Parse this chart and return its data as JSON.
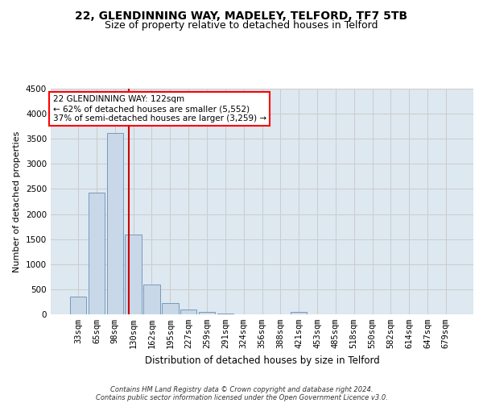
{
  "title1": "22, GLENDINNING WAY, MADELEY, TELFORD, TF7 5TB",
  "title2": "Size of property relative to detached houses in Telford",
  "xlabel": "Distribution of detached houses by size in Telford",
  "ylabel": "Number of detached properties",
  "footnote1": "Contains HM Land Registry data © Crown copyright and database right 2024.",
  "footnote2": "Contains public sector information licensed under the Open Government Licence v3.0.",
  "annotation_line1": "22 GLENDINNING WAY: 122sqm",
  "annotation_line2": "← 62% of detached houses are smaller (5,552)",
  "annotation_line3": "37% of semi-detached houses are larger (3,259) →",
  "categories": [
    "33sqm",
    "65sqm",
    "98sqm",
    "130sqm",
    "162sqm",
    "195sqm",
    "227sqm",
    "259sqm",
    "291sqm",
    "324sqm",
    "356sqm",
    "388sqm",
    "421sqm",
    "453sqm",
    "485sqm",
    "518sqm",
    "550sqm",
    "582sqm",
    "614sqm",
    "647sqm",
    "679sqm"
  ],
  "values": [
    350,
    2420,
    3620,
    1590,
    600,
    230,
    100,
    55,
    10,
    0,
    0,
    0,
    50,
    0,
    0,
    0,
    0,
    0,
    0,
    0,
    0
  ],
  "bar_color": "#c8d8e8",
  "bar_edge_color": "#7799bb",
  "vline_color": "#cc0000",
  "vline_x": 2.75,
  "ylim": [
    0,
    4500
  ],
  "yticks": [
    0,
    500,
    1000,
    1500,
    2000,
    2500,
    3000,
    3500,
    4000,
    4500
  ],
  "grid_color": "#cccccc",
  "bg_color": "#dde8f0",
  "title1_fontsize": 10,
  "title2_fontsize": 9,
  "xlabel_fontsize": 8.5,
  "ylabel_fontsize": 8,
  "tick_fontsize": 7.5,
  "annot_fontsize": 7.5,
  "footnote_fontsize": 6
}
